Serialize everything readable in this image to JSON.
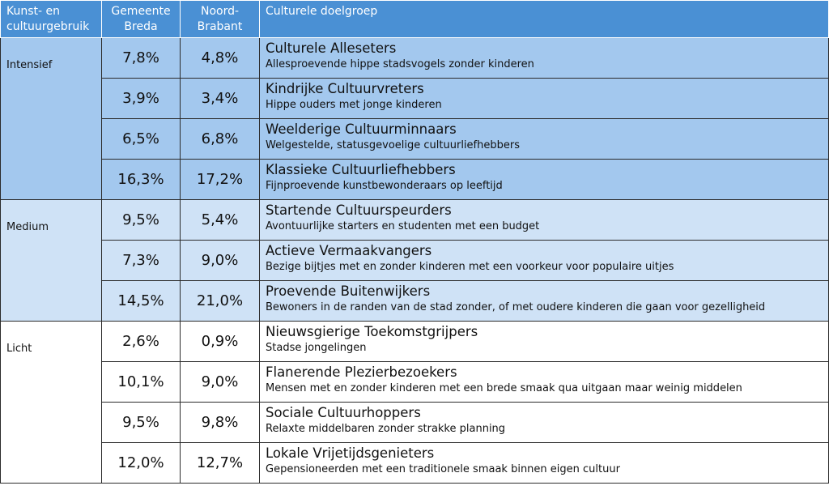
{
  "header": {
    "col1": "Kunst- en cultuurgebruik",
    "col2": "Gemeente Breda",
    "col3": "Noord-Brabant",
    "col4": "Culturele doelgroep"
  },
  "groups": [
    {
      "label": "Intensief",
      "rows": [
        {
          "breda": "7,8%",
          "brabant": "4,8%",
          "name": "Culturele Alleseters",
          "desc": "Allesproevende hippe stadsvogels zonder kinderen"
        },
        {
          "breda": "3,9%",
          "brabant": "3,4%",
          "name": "Kindrijke Cultuurvreters",
          "desc": "Hippe ouders met jonge kinderen"
        },
        {
          "breda": "6,5%",
          "brabant": "6,8%",
          "name": "Weelderige Cultuurminnaars",
          "desc": "Welgestelde, statusgevoelige cultuurliefhebbers"
        },
        {
          "breda": "16,3%",
          "brabant": "17,2%",
          "name": "Klassieke Cultuurliefhebbers",
          "desc": "Fijnproevende kunstbewonderaars op leeftijd"
        }
      ]
    },
    {
      "label": "Medium",
      "rows": [
        {
          "breda": "9,5%",
          "brabant": "5,4%",
          "name": "Startende Cultuurspeurders",
          "desc": "Avontuurlijke starters en studenten met een budget"
        },
        {
          "breda": "7,3%",
          "brabant": "9,0%",
          "name": "Actieve Vermaakvangers",
          "desc": "Bezige bijtjes met en zonder kinderen met een voorkeur voor populaire uitjes"
        },
        {
          "breda": "14,5%",
          "brabant": "21,0%",
          "name": "Proevende Buitenwijkers",
          "desc": "Bewoners in de randen van de stad zonder, of met oudere kinderen die gaan voor gezelligheid"
        }
      ]
    },
    {
      "label": "Licht",
      "rows": [
        {
          "breda": "2,6%",
          "brabant": "0,9%",
          "name": "Nieuwsgierige Toekomstgrijpers",
          "desc": "Stadse jongelingen"
        },
        {
          "breda": "10,1%",
          "brabant": "9,0%",
          "name": "Flanerende Plezierbezoekers",
          "desc": "Mensen met en zonder kinderen met een brede smaak qua uitgaan maar weinig middelen"
        },
        {
          "breda": "9,5%",
          "brabant": "9,8%",
          "name": "Sociale Cultuurhoppers",
          "desc": "Relaxte middelbaren zonder strakke planning"
        },
        {
          "breda": "12,0%",
          "brabant": "12,7%",
          "name": "Lokale Vrijetijdsgenieters",
          "desc": "Gepensioneerden met een traditionele smaak binnen eigen cultuur"
        }
      ]
    }
  ]
}
